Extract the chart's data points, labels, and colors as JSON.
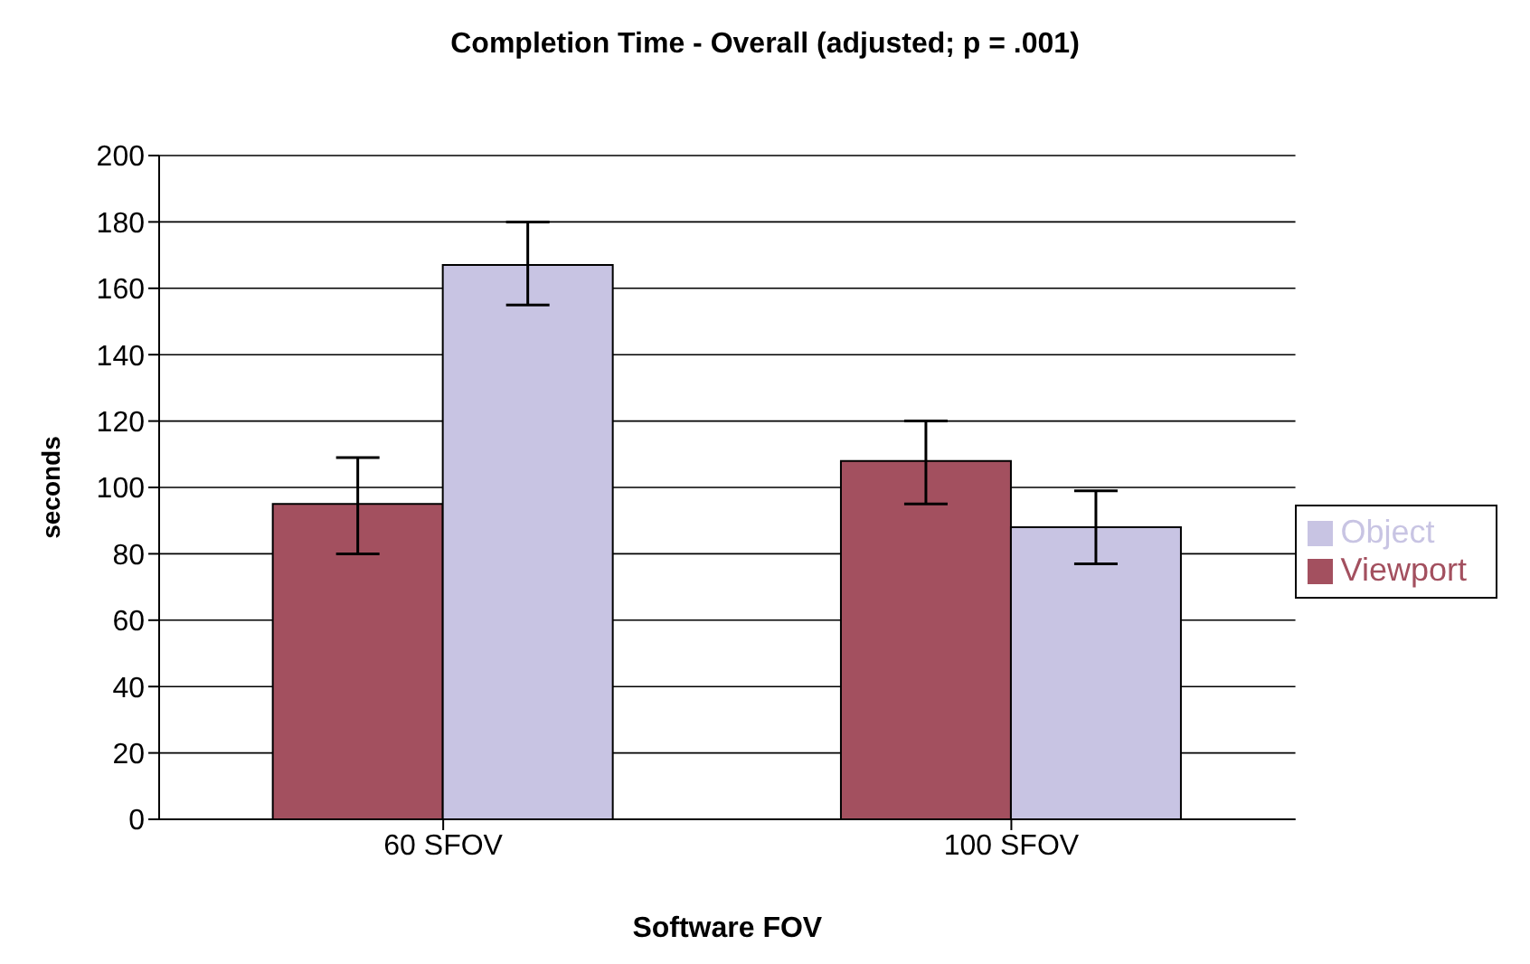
{
  "chart_data": {
    "type": "bar",
    "title": "Completion Time - Overall (adjusted; p = .001)",
    "xlabel": "Software FOV",
    "ylabel": "seconds",
    "categories": [
      "60 SFOV",
      "100 SFOV"
    ],
    "series": [
      {
        "name": "Viewport",
        "color": "#a3505f",
        "values": [
          95,
          108
        ],
        "errors": [
          [
            80,
            109
          ],
          [
            95,
            120
          ]
        ]
      },
      {
        "name": "Object",
        "color": "#c8c4e3",
        "values": [
          167,
          88
        ],
        "errors": [
          [
            155,
            180
          ],
          [
            77,
            99
          ]
        ]
      }
    ],
    "ylim": [
      0,
      200
    ],
    "yticks": [
      0,
      20,
      40,
      60,
      80,
      100,
      120,
      140,
      160,
      180,
      200
    ],
    "grid": "y",
    "legend": "right"
  }
}
